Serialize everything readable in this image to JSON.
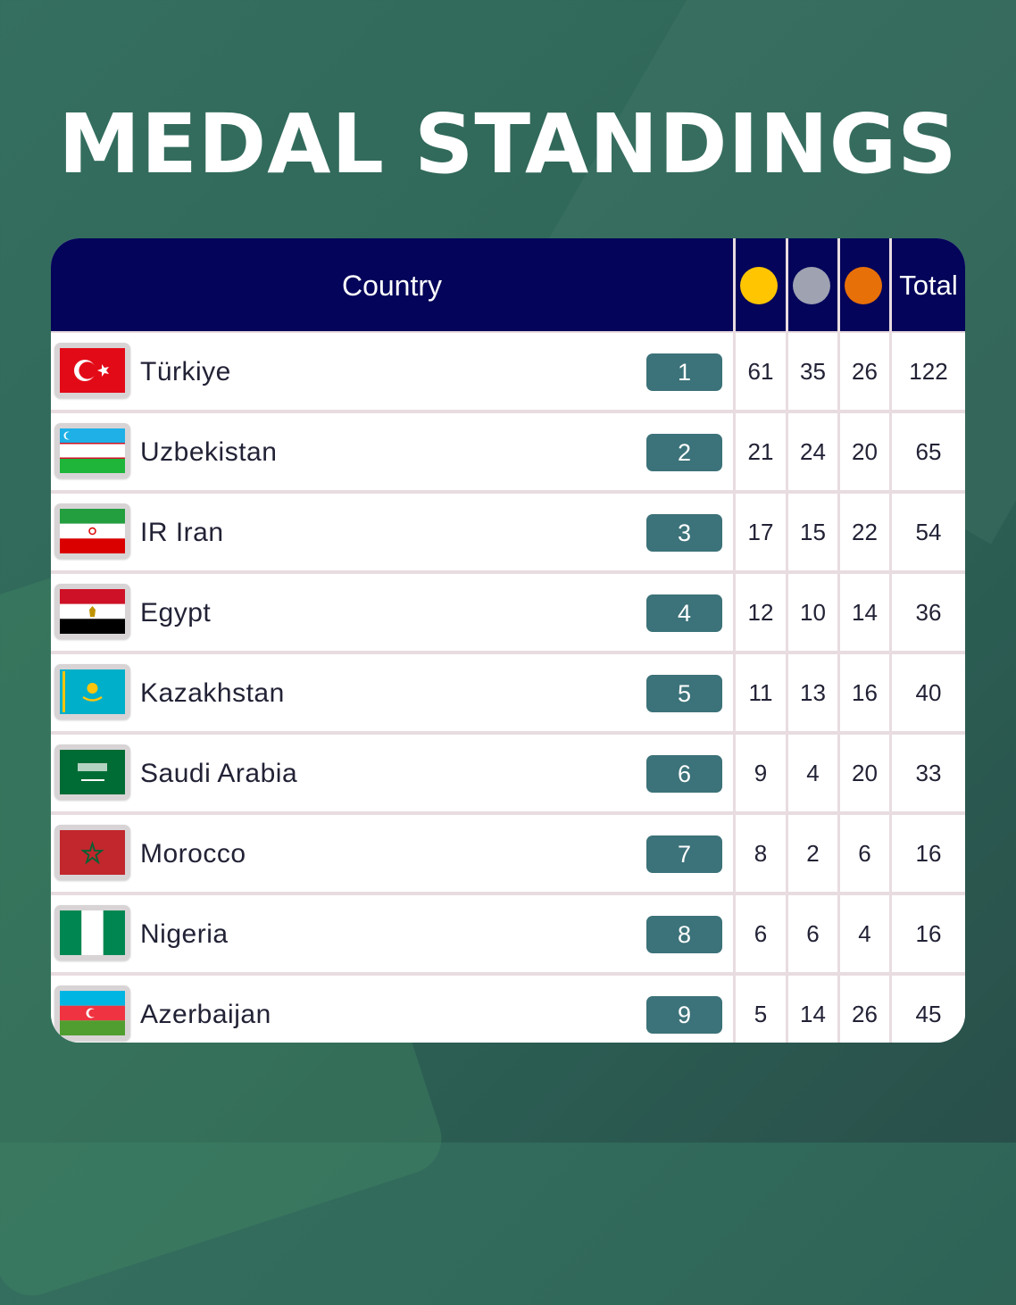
{
  "title": "MEDAL STANDINGS",
  "header": {
    "country_label": "Country",
    "total_label": "Total",
    "medal_icons": [
      "gold-medal-icon",
      "silver-medal-icon",
      "bronze-medal-icon"
    ],
    "colors": {
      "gold": "#ffc500",
      "silver": "#9ea2b1",
      "bronze": "#e77008",
      "header_bg": "#04045a",
      "rank_badge": "#3c7279"
    }
  },
  "rows": [
    {
      "country": "Türkiye",
      "flag": "turkey-flag-icon",
      "rank": "1",
      "gold": "61",
      "silver": "35",
      "bronze": "26",
      "total": "122"
    },
    {
      "country": "Uzbekistan",
      "flag": "uzbekistan-flag-icon",
      "rank": "2",
      "gold": "21",
      "silver": "24",
      "bronze": "20",
      "total": "65"
    },
    {
      "country": "IR Iran",
      "flag": "iran-flag-icon",
      "rank": "3",
      "gold": "17",
      "silver": "15",
      "bronze": "22",
      "total": "54"
    },
    {
      "country": "Egypt",
      "flag": "egypt-flag-icon",
      "rank": "4",
      "gold": "12",
      "silver": "10",
      "bronze": "14",
      "total": "36"
    },
    {
      "country": "Kazakhstan",
      "flag": "kazakhstan-flag-icon",
      "rank": "5",
      "gold": "11",
      "silver": "13",
      "bronze": "16",
      "total": "40"
    },
    {
      "country": "Saudi Arabia",
      "flag": "saudi-arabia-flag-icon",
      "rank": "6",
      "gold": "9",
      "silver": "4",
      "bronze": "20",
      "total": "33"
    },
    {
      "country": "Morocco",
      "flag": "morocco-flag-icon",
      "rank": "7",
      "gold": "8",
      "silver": "2",
      "bronze": "6",
      "total": "16"
    },
    {
      "country": "Nigeria",
      "flag": "nigeria-flag-icon",
      "rank": "8",
      "gold": "6",
      "silver": "6",
      "bronze": "4",
      "total": "16"
    },
    {
      "country": "Azerbaijan",
      "flag": "azerbaijan-flag-icon",
      "rank": "9",
      "gold": "5",
      "silver": "14",
      "bronze": "26",
      "total": "45"
    }
  ]
}
